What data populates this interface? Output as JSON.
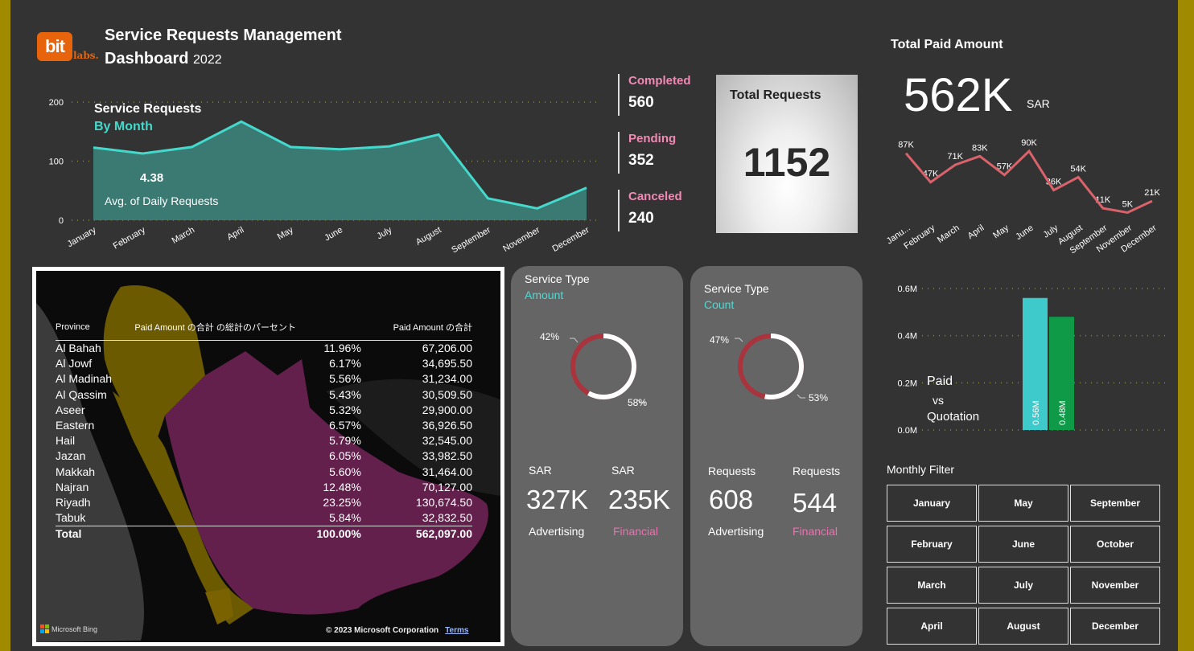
{
  "header": {
    "logo_main": "bit",
    "logo_sub": "labs.",
    "title_line1": "Service Requests Management",
    "title_line2": "Dashboard",
    "year": "2022"
  },
  "monthly_chart": {
    "title": "Service Requests",
    "subtitle": "By Month",
    "avg_value": "4.38",
    "avg_label": "Avg. of Daily Requests",
    "y_ticks": [
      "200",
      "100",
      "0"
    ],
    "months": [
      "January",
      "February",
      "March",
      "April",
      "May",
      "June",
      "July",
      "August",
      "September",
      "November",
      "December"
    ],
    "values": [
      123,
      113,
      124,
      167,
      124,
      120,
      125,
      145,
      37,
      20,
      55
    ],
    "ylim": [
      0,
      200
    ],
    "colors": {
      "line": "#44d9cc",
      "fill": "#3a7a72"
    }
  },
  "status": {
    "completed_label": "Completed",
    "completed_value": "560",
    "pending_label": "Pending",
    "pending_value": "352",
    "canceled_label": "Canceled",
    "canceled_value": "240"
  },
  "total_requests": {
    "label": "Total Requests",
    "value": "1152"
  },
  "paid_amount": {
    "title": "Total Paid Amount",
    "value": "562K",
    "unit": "SAR",
    "months": [
      "Janu...",
      "February",
      "March",
      "April",
      "May",
      "June",
      "July",
      "August",
      "September",
      "November",
      "December"
    ],
    "values": [
      87,
      47,
      71,
      83,
      57,
      90,
      36,
      54,
      11,
      5,
      21
    ],
    "value_labels": [
      "87K",
      "47K",
      "71K",
      "83K",
      "57K",
      "90K",
      "36K",
      "54K",
      "11K",
      "5K",
      "21K"
    ],
    "color": "#d9626b"
  },
  "map_table": {
    "headers": [
      "Province",
      "Paid Amount の合計 の総計のパーセント",
      "Paid Amount の合計"
    ],
    "rows": [
      [
        "Al Bahah",
        "11.96%",
        "67,206.00"
      ],
      [
        "Al Jowf",
        "6.17%",
        "34,695.50"
      ],
      [
        "Al Madinah",
        "5.56%",
        "31,234.00"
      ],
      [
        "Al Qassim",
        "5.43%",
        "30,509.50"
      ],
      [
        "Aseer",
        "5.32%",
        "29,900.00"
      ],
      [
        "Eastern",
        "6.57%",
        "36,926.50"
      ],
      [
        "Hail",
        "5.79%",
        "32,545.00"
      ],
      [
        "Jazan",
        "6.05%",
        "33,982.50"
      ],
      [
        "Makkah",
        "5.60%",
        "31,464.00"
      ],
      [
        "Najran",
        "12.48%",
        "70,127.00"
      ],
      [
        "Riyadh",
        "23.25%",
        "130,674.50"
      ],
      [
        "Tabuk",
        "5.84%",
        "32,832.50"
      ]
    ],
    "total": [
      "Total",
      "100.00%",
      "562,097.00"
    ],
    "bing_label": "Microsoft Bing",
    "copyright": "© 2023 Microsoft Corporation",
    "terms": "Terms"
  },
  "service_amount": {
    "title": "Service Type",
    "subtitle": "Amount",
    "pct_left": "42%",
    "pct_right": "58%",
    "unit_a": "SAR",
    "value_a": "327K",
    "cat_a": "Advertising",
    "unit_b": "SAR",
    "value_b": "235K",
    "cat_b": "Financial",
    "share_advertising": 0.58
  },
  "service_count": {
    "title": "Service Type",
    "subtitle": "Count",
    "pct_left": "47%",
    "pct_right": "53%",
    "unit_a": "Requests",
    "value_a": "608",
    "cat_a": "Advertising",
    "unit_b": "Requests",
    "value_b": "544",
    "cat_b": "Financial",
    "share_advertising": 0.53
  },
  "paid_vs_quotation": {
    "label_1": "Paid",
    "label_2": "vs",
    "label_3": "Quotation",
    "y_ticks": [
      "0.6M",
      "0.4M",
      "0.2M",
      "0.0M"
    ],
    "bars": [
      {
        "label": "0.56M",
        "value": 0.56,
        "color": "#3ec9cb"
      },
      {
        "label": "0.48M",
        "value": 0.48,
        "color": "#0f9a48"
      }
    ],
    "ylim": [
      0,
      0.6
    ]
  },
  "monthly_filter": {
    "title": "Monthly Filter",
    "buttons": [
      "January",
      "May",
      "September",
      "February",
      "June",
      "October",
      "March",
      "July",
      "November",
      "April",
      "August",
      "December"
    ]
  },
  "chart_data": [
    {
      "type": "area",
      "title": "Service Requests By Month",
      "categories": [
        "January",
        "February",
        "March",
        "April",
        "May",
        "June",
        "July",
        "August",
        "September",
        "November",
        "December"
      ],
      "values": [
        123,
        113,
        124,
        167,
        124,
        120,
        125,
        145,
        37,
        20,
        55
      ],
      "ylim": [
        0,
        200
      ]
    },
    {
      "type": "line",
      "title": "Total Paid Amount",
      "categories": [
        "January",
        "February",
        "March",
        "April",
        "May",
        "June",
        "July",
        "August",
        "September",
        "November",
        "December"
      ],
      "values": [
        87,
        47,
        71,
        83,
        57,
        90,
        36,
        54,
        11,
        5,
        21
      ]
    },
    {
      "type": "bar",
      "categories": [
        "Paid",
        "Quotation"
      ],
      "values": [
        0.56,
        0.48
      ],
      "ylim": [
        0,
        0.6
      ]
    }
  ]
}
